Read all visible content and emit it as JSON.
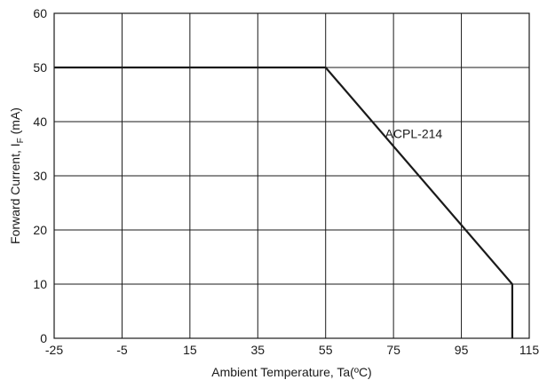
{
  "chart_data": {
    "type": "line",
    "title": "",
    "xlabel": "Ambient Temperature, Ta(ºC)",
    "ylabel_parts": {
      "main": "Forward Current, I",
      "sub": "F",
      "unit": " (mA)"
    },
    "xlim": [
      -25,
      115
    ],
    "ylim": [
      0,
      60
    ],
    "x_ticks": [
      -25,
      -5,
      15,
      35,
      55,
      75,
      95,
      115
    ],
    "y_ticks": [
      0,
      10,
      20,
      30,
      40,
      50,
      60
    ],
    "grid": true,
    "series": [
      {
        "name": "ACPL-214",
        "x": [
          -25,
          55,
          110,
          110
        ],
        "y": [
          50,
          50,
          10,
          0
        ]
      }
    ],
    "annotations": [
      {
        "text": "ACPL-214",
        "x": 72.5,
        "y": 37
      }
    ],
    "colors": {
      "line": "#1a1a1a",
      "grid": "#1a1a1a",
      "background": "#ffffff"
    }
  }
}
